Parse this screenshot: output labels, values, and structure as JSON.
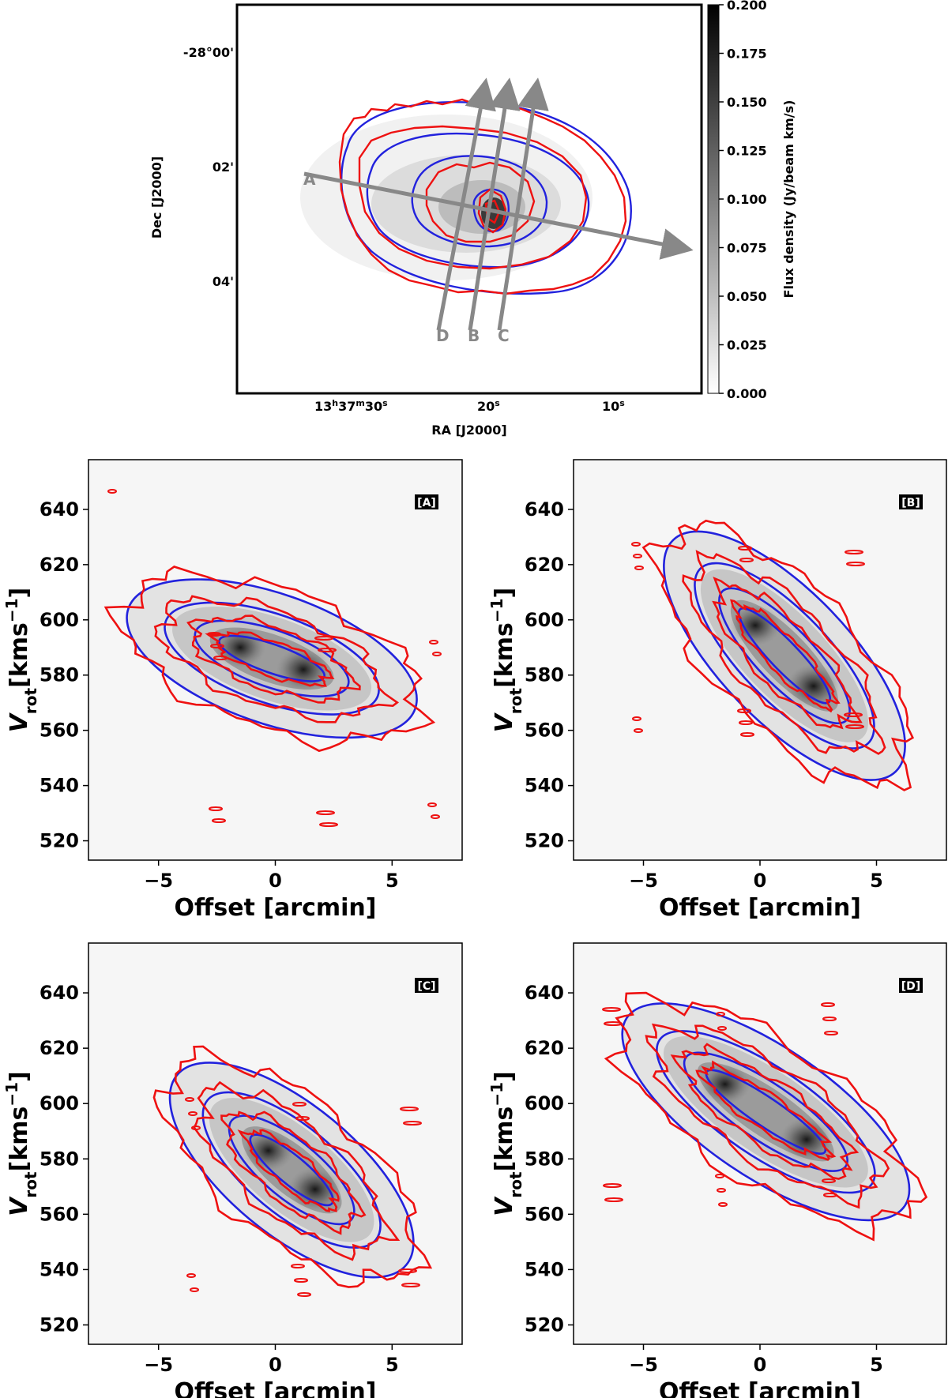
{
  "chart_data": {
    "type": "figure",
    "moment_map": {
      "xlabel": "RA [J2000]",
      "ylabel": "Dec [J2000]",
      "xticks": [
        {
          "label": "13h37m30s",
          "h": "13",
          "m": "37",
          "s": "30",
          "value_s": 30
        },
        {
          "label": "20s",
          "s": "20",
          "value_s": 20
        },
        {
          "label": "10s",
          "s": "10",
          "value_s": 10
        }
      ],
      "yticks": [
        "-28°00'",
        "02'",
        "04'"
      ],
      "colorbar": {
        "label": "Flux density (Jy/beam km/s)",
        "range": [
          0.0,
          0.2
        ],
        "ticks": [
          "0.000",
          "0.025",
          "0.050",
          "0.075",
          "0.100",
          "0.125",
          "0.150",
          "0.175",
          "0.200"
        ]
      },
      "cuts": [
        "A",
        "B",
        "C",
        "D"
      ],
      "contour_colors": {
        "model": "#2222dd",
        "data": "#ee1111"
      }
    },
    "pv_diagrams": [
      {
        "tag": "[A]",
        "xlim": [
          -8,
          8
        ],
        "ylim": [
          513,
          658
        ],
        "core": [
          [
            -1.5,
            590
          ],
          [
            1.2,
            582
          ]
        ],
        "xlabel": "Offset [arcmin]",
        "ylabel_main": "V",
        "ylabel_sub": "rot",
        "ylabel_unit": "[kms",
        "ylabel_sup": "−1",
        "ylabel_close": "]",
        "xticks": [
          "−5",
          "0",
          "5"
        ],
        "yticks": [
          "520",
          "540",
          "560",
          "580",
          "600",
          "620",
          "640"
        ]
      },
      {
        "tag": "[B]",
        "xlim": [
          -8,
          8
        ],
        "ylim": [
          513,
          658
        ],
        "core": [
          [
            -0.2,
            598
          ],
          [
            2.3,
            576
          ]
        ],
        "xlabel": "Offset [arcmin]",
        "ylabel_main": "V",
        "ylabel_sub": "rot",
        "ylabel_unit": "[kms",
        "ylabel_sup": "−1",
        "ylabel_close": "]",
        "xticks": [
          "−5",
          "0",
          "5"
        ],
        "yticks": [
          "520",
          "540",
          "560",
          "580",
          "600",
          "620",
          "640"
        ]
      },
      {
        "tag": "[C]",
        "xlim": [
          -8,
          8
        ],
        "ylim": [
          513,
          658
        ],
        "core": [
          [
            -0.3,
            583
          ],
          [
            1.7,
            569
          ]
        ],
        "xlabel": "Offset [arcmin]",
        "ylabel_main": "V",
        "ylabel_sub": "rot",
        "ylabel_unit": "[kms",
        "ylabel_sup": "−1",
        "ylabel_close": "]",
        "xticks": [
          "−5",
          "0",
          "5"
        ],
        "yticks": [
          "520",
          "540",
          "560",
          "580",
          "600",
          "620",
          "640"
        ]
      },
      {
        "tag": "[D]",
        "xlim": [
          -8,
          8
        ],
        "ylim": [
          513,
          658
        ],
        "core": [
          [
            -1.5,
            607
          ],
          [
            2.0,
            587
          ]
        ],
        "xlabel": "Offset [arcmin]",
        "ylabel_main": "V",
        "ylabel_sub": "rot",
        "ylabel_unit": "[kms",
        "ylabel_sup": "−1",
        "ylabel_close": "]",
        "xticks": [
          "−5",
          "0",
          "5"
        ],
        "yticks": [
          "520",
          "540",
          "560",
          "580",
          "600",
          "620",
          "640"
        ]
      }
    ]
  }
}
